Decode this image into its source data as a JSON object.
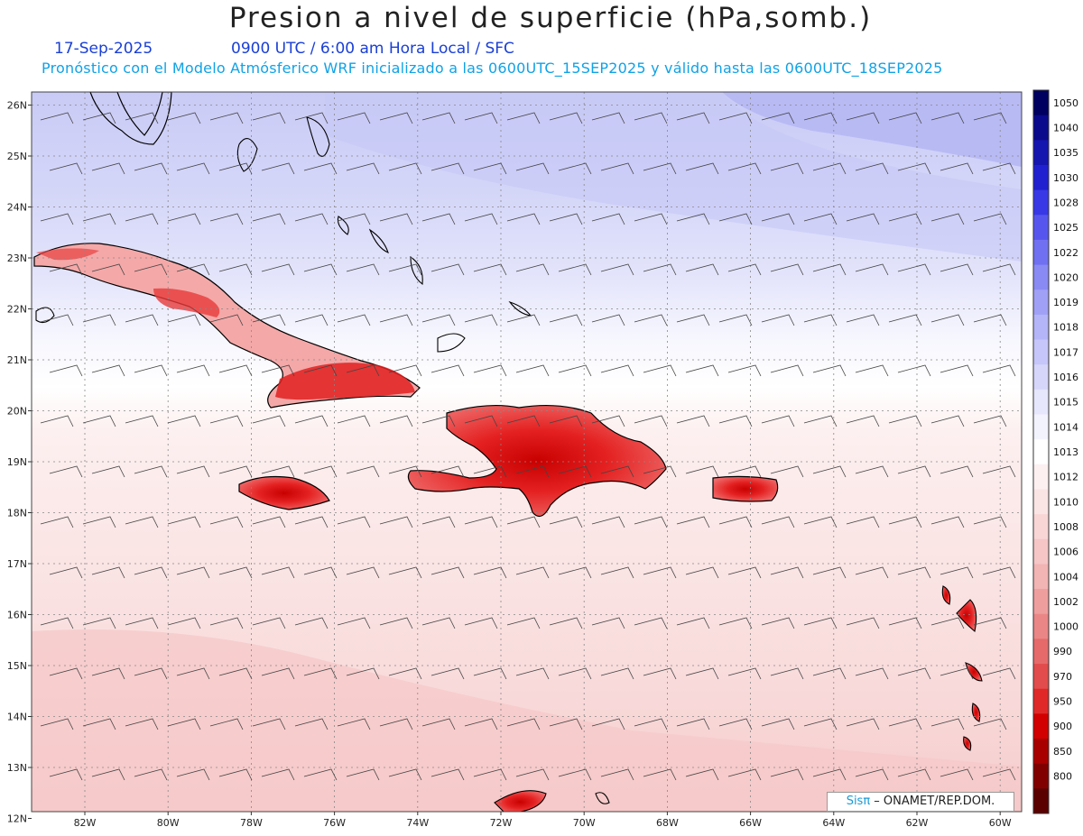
{
  "title": "Presion a nivel de superficie (hPa,somb.)",
  "date": "17-Sep-2025",
  "valid_time": "0900 UTC / 6:00 am Hora Local / SFC",
  "forecast_note": "Pronóstico con el Modelo Atmósferico WRF inicializado a las 0600UTC_15SEP2025 y válido hasta las  0600UTC_18SEP2025",
  "lat_labels": [
    "26N",
    "25N",
    "24N",
    "23N",
    "22N",
    "21N",
    "20N",
    "19N",
    "18N",
    "17N",
    "16N",
    "15N",
    "14N",
    "13N",
    "12N"
  ],
  "lon_labels": [
    "82W",
    "80W",
    "78W",
    "76W",
    "74W",
    "72W",
    "70W",
    "68W",
    "66W",
    "64W",
    "62W",
    "60W"
  ],
  "colorbar": {
    "labels": [
      "1050",
      "1040",
      "1035",
      "1030",
      "1028",
      "1025",
      "1022",
      "1020",
      "1019",
      "1018",
      "1017",
      "1016",
      "1015",
      "1014",
      "1013",
      "1012",
      "1010",
      "1008",
      "1006",
      "1004",
      "1002",
      "1000",
      "990",
      "970",
      "950",
      "900",
      "850",
      "800"
    ],
    "colors": [
      "#000060",
      "#0a0a8c",
      "#1515b0",
      "#2020d0",
      "#3838e6",
      "#5656ee",
      "#7070f2",
      "#8a8af4",
      "#a0a0f6",
      "#b4b4f8",
      "#c6c6fa",
      "#d6d6fb",
      "#e6e6fc",
      "#f3f3fe",
      "#ffffff",
      "#fdf0f0",
      "#fbe4e4",
      "#f9d6d6",
      "#f6c6c6",
      "#f3b4b4",
      "#ef9e9e",
      "#eb8686",
      "#e66a6a",
      "#e24c4c",
      "#e02828",
      "#d20000",
      "#a80000",
      "#800000",
      "#5a0000"
    ]
  },
  "credit": {
    "logo": "Sisπ",
    "text": " – ONAMET/REP.DOM."
  }
}
